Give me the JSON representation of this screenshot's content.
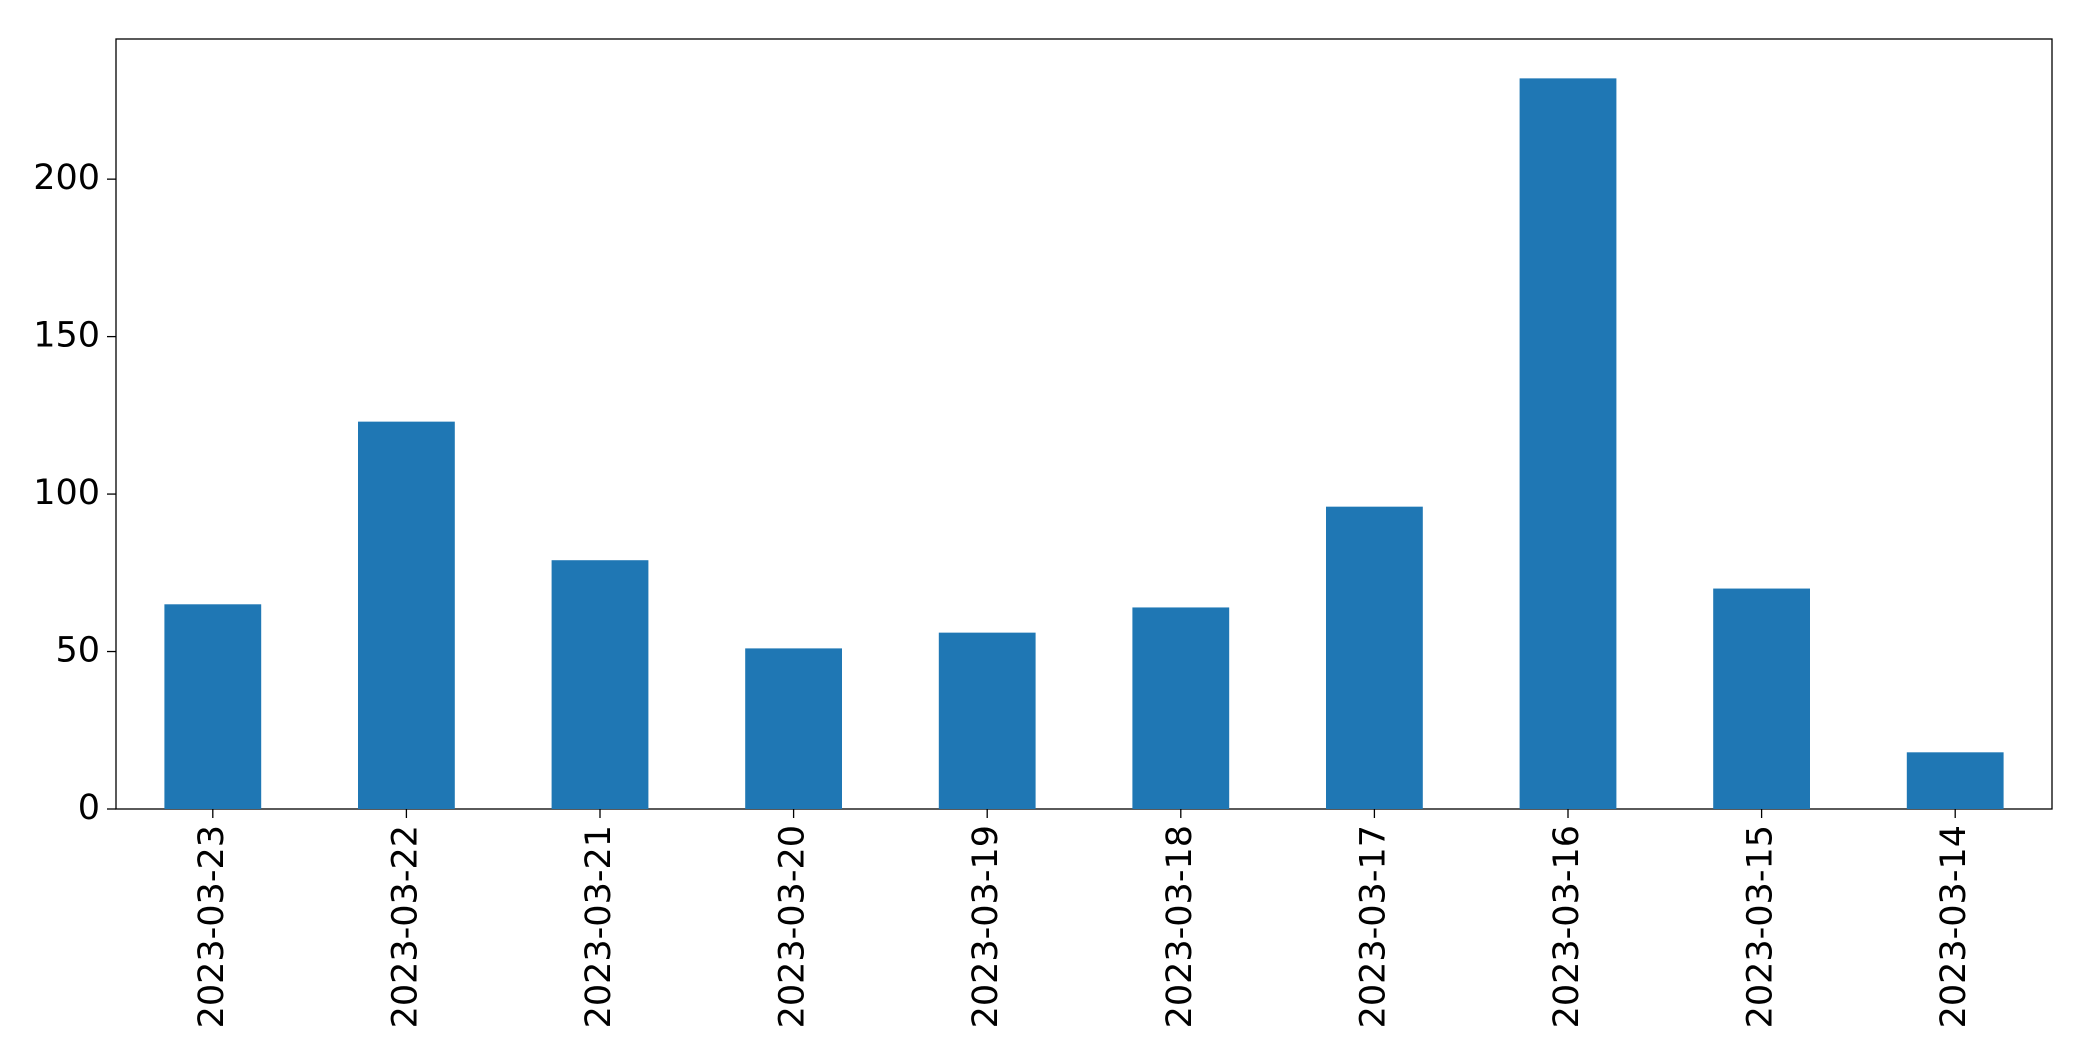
{
  "chart_data": {
    "type": "bar",
    "categories": [
      "2023-03-23",
      "2023-03-22",
      "2023-03-21",
      "2023-03-20",
      "2023-03-19",
      "2023-03-18",
      "2023-03-17",
      "2023-03-16",
      "2023-03-15",
      "2023-03-14"
    ],
    "values": [
      65,
      123,
      79,
      51,
      56,
      64,
      96,
      232,
      70,
      18
    ],
    "color": "#1f77b4",
    "ylim": [
      0,
      244.5
    ],
    "yticks": [
      0,
      50,
      100,
      150,
      200
    ],
    "grid": false
  }
}
